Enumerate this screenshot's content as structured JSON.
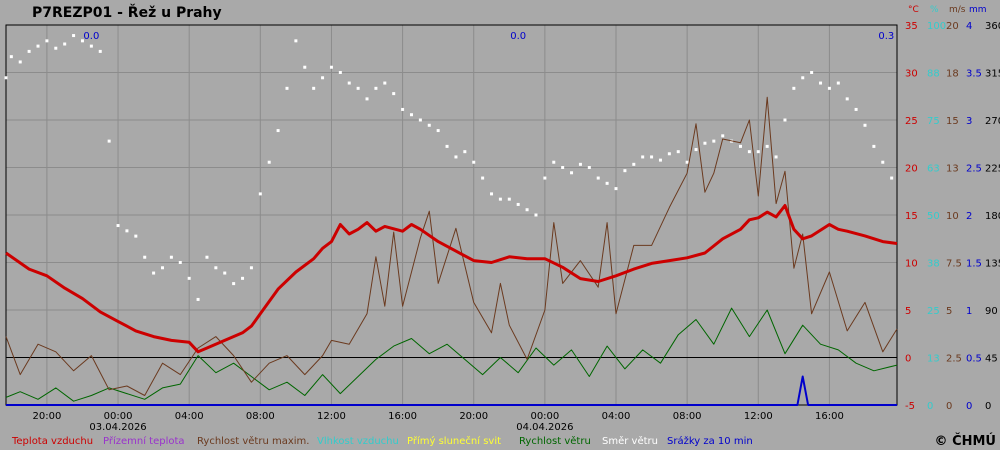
{
  "chart_data": {
    "type": "line",
    "title": "P7REZP01 - Řež u Prahy",
    "copyright": "© ČHMÚ",
    "axes": {
      "temperature": {
        "unit": "°C",
        "color": "#cc0000",
        "min": -5,
        "max": 35,
        "ticks": [
          "-5",
          "0",
          "5",
          "10",
          "15",
          "20",
          "25",
          "30",
          "35"
        ]
      },
      "humidity": {
        "unit": "%",
        "color": "#33cccc",
        "min": 0,
        "max": 100,
        "ticks": [
          "0",
          "13",
          "25",
          "38",
          "50",
          "63",
          "75",
          "88",
          "100"
        ]
      },
      "wind_gust": {
        "unit": "m/s",
        "color": "#6b3a1f",
        "min": 0,
        "max": 20,
        "ticks": [
          "0",
          "2.5",
          "5",
          "7.5",
          "10",
          "13",
          "15",
          "18",
          "20"
        ]
      },
      "precip": {
        "unit": "mm",
        "color": "#0000cc",
        "min": 0,
        "max": 4,
        "ticks": [
          "0",
          "0.5",
          "1",
          "1.5",
          "2",
          "2.5",
          "3",
          "3.5",
          "4"
        ]
      },
      "direction": {
        "unit": "",
        "color": "#000000",
        "min": 0,
        "max": 360,
        "ticks": [
          "0",
          "45",
          "90",
          "135",
          "180",
          "225",
          "270",
          "315",
          "360"
        ]
      }
    },
    "time_labels": [
      "20:00",
      "00:00",
      "04:00",
      "08:00",
      "12:00",
      "16:00",
      "20:00",
      "00:00",
      "04:00",
      "08:00",
      "12:00",
      "16:00"
    ],
    "time_hours": [
      20,
      24,
      28,
      32,
      36,
      40,
      44,
      48,
      52,
      56,
      60,
      64
    ],
    "date_labels": [
      {
        "label": "03.04.2026",
        "hour": 24
      },
      {
        "label": "04.04.2026",
        "hour": 48
      }
    ],
    "x_range": [
      17.7,
      67.8
    ],
    "precip_day_totals": [
      {
        "label": "0.0",
        "hour": 22.5
      },
      {
        "label": "0.0",
        "hour": 46.5
      },
      {
        "label": "0.3",
        "hour": 67.2
      }
    ],
    "zero_line": 0,
    "series": [
      {
        "name": "Teplota vzduchu",
        "color": "#cc0000",
        "axis": "temperature",
        "x": [
          17.7,
          19,
          20,
          21,
          22,
          23,
          24,
          25,
          26,
          27,
          28,
          28.5,
          29,
          30,
          31,
          31.5,
          32,
          33,
          34,
          35,
          35.5,
          36,
          36.5,
          37,
          37.5,
          38,
          38.5,
          39,
          40,
          40.5,
          41,
          42,
          43,
          44,
          45,
          46,
          47,
          48,
          49,
          50,
          51,
          52,
          53,
          54,
          55,
          56,
          57,
          58,
          59,
          59.5,
          60,
          60.5,
          61,
          61.5,
          62,
          62.5,
          63,
          64,
          64.5,
          65,
          66,
          67,
          67.8
        ],
        "y": [
          11,
          9.3,
          8.6,
          7.3,
          6.2,
          4.8,
          3.8,
          2.8,
          2.2,
          1.8,
          1.6,
          0.6,
          1,
          1.8,
          2.6,
          3.3,
          4.6,
          7.2,
          9,
          10.4,
          11.5,
          12.2,
          14,
          13,
          13.5,
          14.2,
          13.3,
          13.8,
          13.3,
          14,
          13.5,
          12.2,
          11.2,
          10.2,
          10,
          10.6,
          10.4,
          10.4,
          9.5,
          8.3,
          8,
          8.6,
          9.3,
          9.9,
          10.2,
          10.5,
          11,
          12.5,
          13.5,
          14.5,
          14.7,
          15.3,
          14.8,
          16,
          13.5,
          12.5,
          12.8,
          14,
          13.5,
          13.3,
          12.8,
          12.2,
          12
        ]
      },
      {
        "name": "Rychlost větru maxim.",
        "color": "#6b3a1f",
        "axis": "wind_gust",
        "x": [
          17.7,
          18.5,
          19.5,
          20.5,
          21.5,
          22.5,
          23.5,
          24.5,
          25.5,
          26.5,
          27.5,
          28.5,
          29.5,
          30.5,
          31.5,
          32.5,
          33.5,
          34.5,
          35.5,
          36,
          37,
          38,
          38.5,
          39,
          39.5,
          40,
          41,
          41.5,
          42,
          43,
          44,
          45,
          45.5,
          46,
          47,
          48,
          48.5,
          49,
          50,
          51,
          51.5,
          52,
          53,
          54,
          55,
          56,
          56.5,
          57,
          57.5,
          58,
          59,
          59.5,
          60,
          60.5,
          61,
          61.5,
          62,
          62.5,
          63,
          64,
          65,
          66,
          67,
          67.8
        ],
        "y": [
          3.6,
          1.6,
          3.2,
          2.8,
          1.8,
          2.6,
          0.8,
          1,
          0.5,
          2.2,
          1.6,
          3,
          3.6,
          2.6,
          1.2,
          2.2,
          2.6,
          1.6,
          2.6,
          3.4,
          3.2,
          4.8,
          7.8,
          5.2,
          9.1,
          5.2,
          8.8,
          10.2,
          6.4,
          9.3,
          5.4,
          3.8,
          6.4,
          4.2,
          2.4,
          5,
          9.6,
          6.4,
          7.6,
          6.2,
          9.6,
          4.8,
          8.4,
          8.4,
          10.4,
          12.2,
          14.8,
          11.2,
          12.2,
          14,
          13.8,
          15,
          11,
          16.2,
          10.6,
          12.3,
          7.2,
          9,
          4.8,
          7,
          3.9,
          5.4,
          2.8,
          4
        ]
      },
      {
        "name": "Rychlost větru",
        "color": "#006600",
        "axis": "wind_gust",
        "x": [
          17.7,
          18.5,
          19.5,
          20.5,
          21.5,
          22.5,
          23.5,
          24.5,
          25.5,
          26.5,
          27.5,
          28.5,
          29.5,
          30.5,
          31.5,
          32.5,
          33.5,
          34.5,
          35.5,
          36.5,
          37.5,
          38.5,
          39.5,
          40.5,
          41.5,
          42.5,
          43.5,
          44.5,
          45.5,
          46.5,
          47.5,
          48.5,
          49.5,
          50.5,
          51.5,
          52.5,
          53.5,
          54.5,
          55.5,
          56.5,
          57.5,
          58.5,
          59.5,
          60.5,
          61.5,
          62.5,
          63.5,
          64.5,
          65.5,
          66.5,
          67.8
        ],
        "y": [
          0.4,
          0.7,
          0.3,
          0.9,
          0.2,
          0.5,
          0.9,
          0.6,
          0.3,
          0.9,
          1.1,
          2.6,
          1.7,
          2.2,
          1.5,
          0.8,
          1.2,
          0.5,
          1.6,
          0.6,
          1.5,
          2.4,
          3.1,
          3.5,
          2.7,
          3.2,
          2.4,
          1.6,
          2.5,
          1.7,
          3,
          2.1,
          2.9,
          1.5,
          3.1,
          1.9,
          2.9,
          2.2,
          3.7,
          4.5,
          3.2,
          5.1,
          3.6,
          5,
          2.7,
          4.2,
          3.2,
          2.9,
          2.2,
          1.8,
          2.1
        ]
      },
      {
        "name": "Srážky za 10 min",
        "color": "#0000cc",
        "axis": "precip",
        "x": [
          17.7,
          62.2,
          62.5,
          62.8,
          67.8
        ],
        "y": [
          0,
          0,
          0.3,
          0,
          0
        ]
      }
    ],
    "scatter": {
      "name": "Směr větru",
      "color": "#ffffff",
      "axis": "direction",
      "x": [
        17.7,
        18,
        18.5,
        19,
        19.5,
        20,
        20.5,
        21,
        21.5,
        22,
        22.5,
        23,
        23.5,
        24,
        24.5,
        25,
        25.5,
        26,
        26.5,
        27,
        27.5,
        28,
        28.5,
        29,
        29.5,
        30,
        30.5,
        31,
        31.5,
        32,
        32.5,
        33,
        33.5,
        34,
        34.5,
        35,
        35.5,
        36,
        36.5,
        37,
        37.5,
        38,
        38.5,
        39,
        39.5,
        40,
        40.5,
        41,
        41.5,
        42,
        42.5,
        43,
        43.5,
        44,
        44.5,
        45,
        45.5,
        46,
        46.5,
        47,
        47.5,
        48,
        48.5,
        49,
        49.5,
        50,
        50.5,
        51,
        51.5,
        52,
        52.5,
        53,
        53.5,
        54,
        54.5,
        55,
        55.5,
        56,
        56.5,
        57,
        57.5,
        58,
        58.5,
        59,
        59.5,
        60,
        60.5,
        61,
        61.5,
        62,
        62.5,
        63,
        63.5,
        64,
        64.5,
        65,
        65.5,
        66,
        66.5,
        67,
        67.5
      ],
      "y": [
        310,
        330,
        325,
        335,
        340,
        345,
        338,
        342,
        350,
        345,
        340,
        335,
        250,
        170,
        165,
        160,
        140,
        125,
        130,
        140,
        135,
        120,
        100,
        140,
        130,
        125,
        115,
        120,
        130,
        200,
        230,
        260,
        300,
        345,
        320,
        300,
        310,
        320,
        315,
        305,
        300,
        290,
        300,
        305,
        295,
        280,
        275,
        270,
        265,
        260,
        245,
        235,
        240,
        230,
        215,
        200,
        195,
        195,
        190,
        185,
        180,
        215,
        230,
        225,
        220,
        228,
        225,
        215,
        210,
        205,
        222,
        228,
        235,
        235,
        232,
        238,
        240,
        230,
        242,
        248,
        250,
        255,
        250,
        245,
        240,
        240,
        245,
        235,
        270,
        300,
        310,
        315,
        305,
        300,
        305,
        290,
        280,
        265,
        245,
        230,
        215
      ]
    },
    "legend": [
      {
        "label": "Teplota vzduchu",
        "color": "#cc0000"
      },
      {
        "label": "Přízemní teplota",
        "color": "#9933cc"
      },
      {
        "label": "Rychlost větru maxim.",
        "color": "#6b3a1f"
      },
      {
        "label": "Vlhkost vzduchu",
        "color": "#33cccc"
      },
      {
        "label": "Přímý sluneční svit",
        "color": "#ffff33"
      },
      {
        "label": "Rychlost větru",
        "color": "#006600"
      },
      {
        "label": "Směr větru",
        "color": "#ffffff"
      },
      {
        "label": "Srážky za 10 min",
        "color": "#0000cc"
      }
    ]
  }
}
